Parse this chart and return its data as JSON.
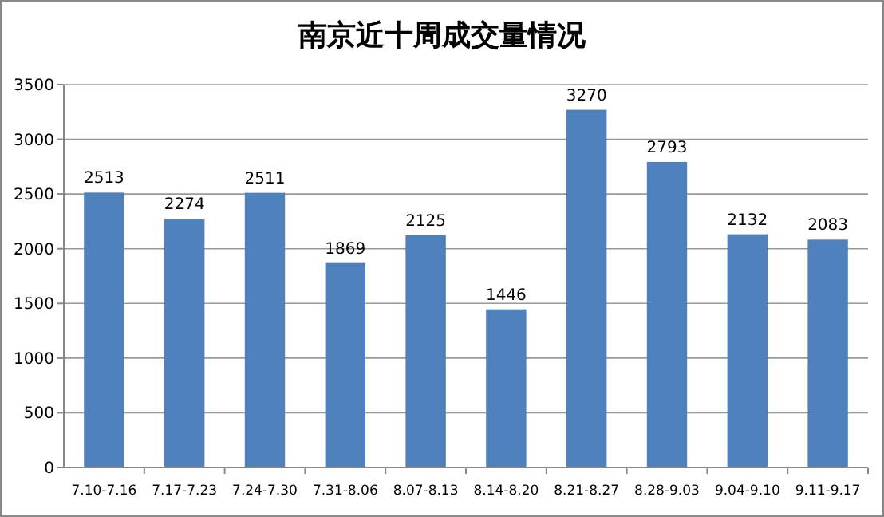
{
  "chart_data": {
    "type": "bar",
    "title": "南京近十周成交量情况",
    "categories": [
      "7.10-7.16",
      "7.17-7.23",
      "7.24-7.30",
      "7.31-8.06",
      "8.07-8.13",
      "8.14-8.20",
      "8.21-8.27",
      "8.28-9.03",
      "9.04-9.10",
      "9.11-9.17"
    ],
    "values": [
      2513,
      2274,
      2511,
      1869,
      2125,
      1446,
      3270,
      2793,
      2132,
      2083
    ],
    "color": "#4f81bd",
    "ylim": [
      0,
      3500
    ],
    "yticks": [
      0,
      500,
      1000,
      1500,
      2000,
      2500,
      3000,
      3500
    ],
    "grid": "y",
    "data_labels": true
  }
}
